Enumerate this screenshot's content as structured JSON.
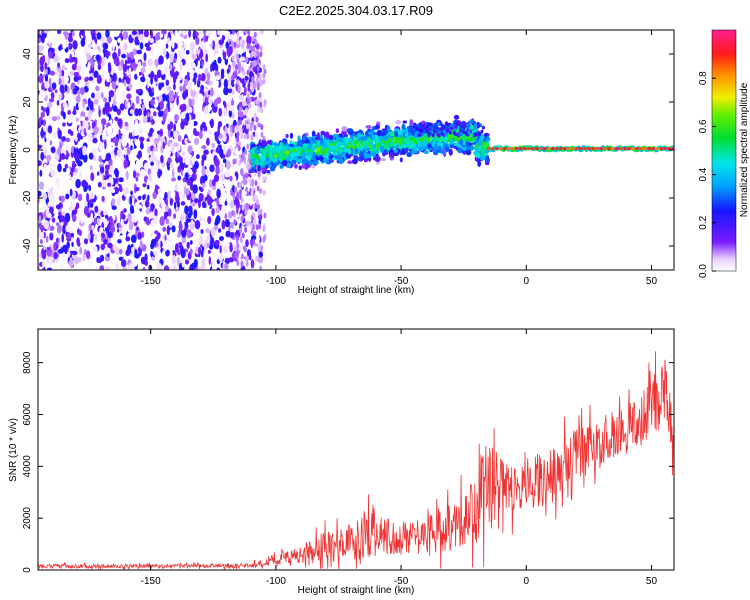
{
  "title": "C2E2.2025.304.03.17.R09",
  "chart_data": [
    {
      "type": "heatmap",
      "name": "spectrogram",
      "xlabel": "Height of straight line (km)",
      "ylabel": "Frequency (Hz)",
      "xlim": [
        -195,
        59
      ],
      "ylim": [
        -50,
        50
      ],
      "xticks": [
        -150,
        -100,
        -50,
        0,
        50
      ],
      "yticks": [
        -40,
        -20,
        0,
        20,
        40
      ],
      "colorbar": {
        "label": "Normalized spectral amplitude",
        "range": [
          0,
          1
        ],
        "ticks": [
          "0.0",
          "0.2",
          "0.4",
          "0.6",
          "0.8"
        ]
      },
      "regions": [
        {
          "x_range": [
            -195,
            -110
          ],
          "description": "broadband noise",
          "level": 0.15
        },
        {
          "x_range": [
            -110,
            -15
          ],
          "description": "signal band near 0 Hz with drift",
          "level": 0.45
        },
        {
          "x_range": [
            -15,
            59
          ],
          "description": "strong narrow line at 0 Hz",
          "level": 0.95
        }
      ]
    },
    {
      "type": "line",
      "name": "snr",
      "xlabel": "Height of straight line (km)",
      "ylabel": "SNR (10 * v/v)",
      "xlim": [
        -195,
        59
      ],
      "ylim": [
        0,
        9300
      ],
      "xticks": [
        -150,
        -100,
        -50,
        0,
        50
      ],
      "yticks": [
        0,
        2000,
        4000,
        6000,
        8000
      ],
      "color": "#ee3333",
      "envelope": {
        "x": [
          -195,
          -150,
          -110,
          -100,
          -90,
          -80,
          -70,
          -63,
          -55,
          -45,
          -35,
          -25,
          -20,
          -15,
          -10,
          0,
          10,
          20,
          30,
          40,
          50,
          55,
          59
        ],
        "mean": [
          150,
          150,
          180,
          350,
          600,
          900,
          1100,
          1400,
          1200,
          1300,
          1500,
          1800,
          2600,
          3200,
          3300,
          3300,
          3600,
          4500,
          5000,
          5500,
          6200,
          7000,
          4500
        ],
        "spread": [
          120,
          100,
          120,
          300,
          500,
          900,
          1000,
          1500,
          900,
          1000,
          1200,
          1500,
          2500,
          2600,
          1500,
          1500,
          1500,
          1400,
          1300,
          1300,
          1600,
          2000,
          1800
        ]
      }
    }
  ]
}
